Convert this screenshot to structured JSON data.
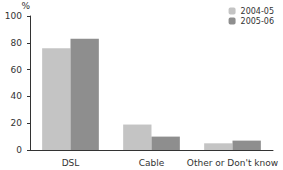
{
  "chart_data": {
    "type": "bar",
    "y_label": "%",
    "categories": [
      "DSL",
      "Cable",
      "Other or Don't know"
    ],
    "series": [
      {
        "name": "2004-05",
        "color": "#c4c4c4",
        "values": [
          76,
          19,
          5
        ]
      },
      {
        "name": "2005-06",
        "color": "#8e8e8e",
        "values": [
          83,
          10,
          7
        ]
      }
    ],
    "ylim": [
      0,
      100
    ],
    "yticks": [
      0,
      20,
      40,
      60,
      80,
      100
    ],
    "grid": false,
    "legend": "top-right"
  }
}
